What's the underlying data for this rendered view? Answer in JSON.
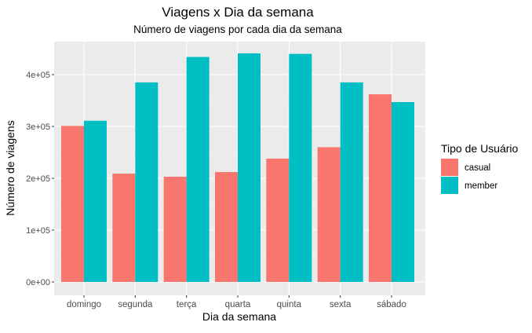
{
  "chart_data": {
    "type": "bar",
    "title": "Viagens x Dia da semana",
    "subtitle": "Número de viagens por cada dia da semana",
    "xlabel": "Dia da semana",
    "ylabel": "Número de viagens",
    "categories": [
      "domingo",
      "segunda",
      "terça",
      "quarta",
      "quinta",
      "sexta",
      "sábado"
    ],
    "series": [
      {
        "name": "casual",
        "values": [
          301000,
          209000,
          203000,
          212000,
          238000,
          260000,
          362000
        ]
      },
      {
        "name": "member",
        "values": [
          311000,
          385000,
          434000,
          441000,
          440000,
          385000,
          347000
        ]
      }
    ],
    "ylim": [
      0,
      445000
    ],
    "yticks": [
      0,
      100000,
      200000,
      300000,
      400000
    ],
    "ytick_labels": [
      "0e+00",
      "1e+05",
      "2e+05",
      "3e+05",
      "4e+05"
    ],
    "grid": true,
    "legend": {
      "title": "Tipo de Usuário",
      "placement": "right"
    },
    "colors": {
      "casual": "#F8766D",
      "member": "#00BFC4",
      "panel_background": "#EBEBEB",
      "grid_major": "#FFFFFF",
      "grid_minor": "#F5F5F5",
      "axis_text": "#4D4D4D",
      "text": "#000000"
    }
  }
}
